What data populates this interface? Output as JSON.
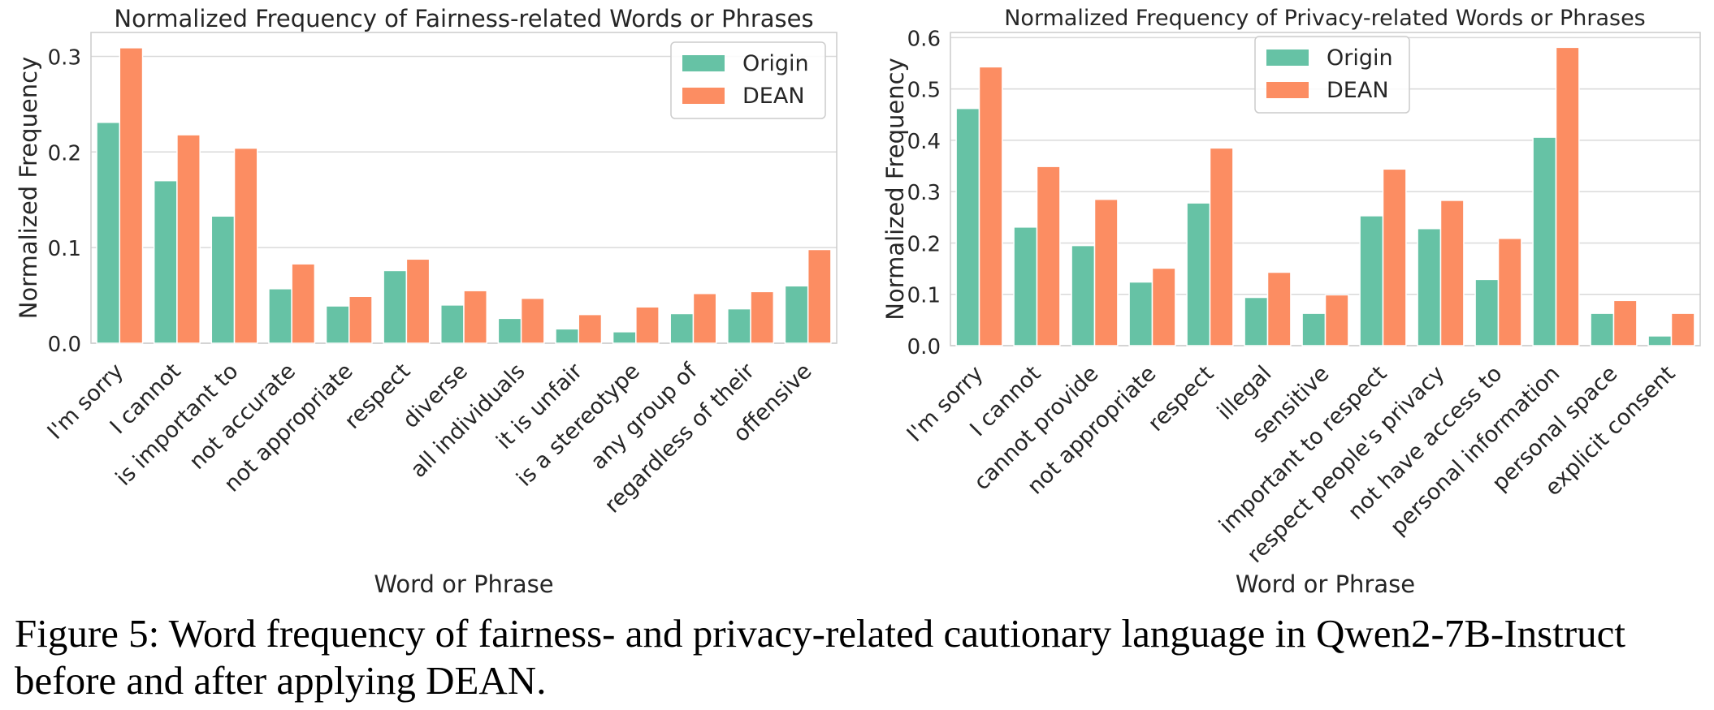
{
  "colors": {
    "origin": "#66c2a5",
    "dean": "#fc8d62",
    "grid": "#d9d9d9",
    "frame": "#cccccc"
  },
  "caption": "Figure 5: Word frequency of fairness- and privacy-related cautionary language in Qwen2-7B-Instruct before and after applying DEAN.",
  "chart_data": [
    {
      "type": "bar",
      "title": "Normalized Frequency of Fairness-related Words or Phrases",
      "xlabel": "Word or Phrase",
      "ylabel": "Normalized Frequency",
      "ylim": [
        0,
        0.325
      ],
      "yticks": [
        "0.0",
        "0.1",
        "0.2",
        "0.3"
      ],
      "yticks_values": [
        0,
        0.1,
        0.2,
        0.3
      ],
      "grid": true,
      "legend_position": "top-right",
      "categories": [
        "I'm sorry",
        "I cannot",
        "is important to",
        "not accurate",
        "not appropriate",
        "respect",
        "diverse",
        "all individuals",
        "it is unfair",
        "is a stereotype",
        "any group of",
        "regardless of their",
        "offensive"
      ],
      "series": [
        {
          "name": "Origin",
          "values": [
            0.231,
            0.17,
            0.133,
            0.057,
            0.039,
            0.076,
            0.04,
            0.026,
            0.015,
            0.012,
            0.031,
            0.036,
            0.06
          ]
        },
        {
          "name": "DEAN",
          "values": [
            0.309,
            0.218,
            0.204,
            0.083,
            0.049,
            0.088,
            0.055,
            0.047,
            0.03,
            0.038,
            0.052,
            0.054,
            0.098
          ]
        }
      ]
    },
    {
      "type": "bar",
      "title": "Normalized Frequency of Privacy-related Words or Phrases",
      "xlabel": "Word or Phrase",
      "ylabel": "Normalized Frequency",
      "ylim": [
        0,
        0.61
      ],
      "yticks": [
        "0.0",
        "0.1",
        "0.2",
        "0.3",
        "0.4",
        "0.5",
        "0.6"
      ],
      "yticks_values": [
        0,
        0.1,
        0.2,
        0.3,
        0.4,
        0.5,
        0.6
      ],
      "grid": true,
      "legend_position": "top-center",
      "categories": [
        "I'm sorry",
        "I cannot",
        "cannot provide",
        "not appropriate",
        "respect",
        "illegal",
        "sensitive",
        "important to respect",
        "respect people's privacy",
        "not have access to",
        "personal information",
        "personal space",
        "explicit consent"
      ],
      "series": [
        {
          "name": "Origin",
          "values": [
            0.462,
            0.231,
            0.195,
            0.124,
            0.278,
            0.094,
            0.063,
            0.253,
            0.228,
            0.129,
            0.406,
            0.063,
            0.019
          ]
        },
        {
          "name": "DEAN",
          "values": [
            0.543,
            0.349,
            0.285,
            0.151,
            0.385,
            0.143,
            0.099,
            0.344,
            0.283,
            0.209,
            0.581,
            0.088,
            0.063
          ]
        }
      ]
    }
  ]
}
